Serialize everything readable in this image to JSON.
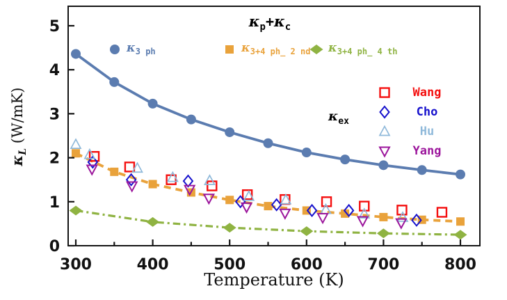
{
  "chart_data": {
    "type": "line+scatter",
    "title": {
      "kappa1": "κ",
      "sub1": "p",
      "plus": "+",
      "kappa2": "κ",
      "sub2": "c"
    },
    "xlabel": "Temperature (K)",
    "ylabel": {
      "symbol": "κ",
      "sub": "L",
      "units": " (W/mK)"
    },
    "axes": {
      "xlim": [
        290,
        825
      ],
      "ylim": [
        0,
        5.44
      ],
      "x_major_ticks": [
        300,
        400,
        500,
        600,
        700,
        800
      ],
      "x_minor_ticks": [
        350,
        450,
        550,
        650,
        750
      ],
      "y_ticks": [
        0,
        1,
        2,
        3,
        4,
        5
      ],
      "grid": "off",
      "frame": "full-box"
    },
    "model_series": [
      {
        "name": "kappa-3ph",
        "symbol": "κ",
        "sub": "3 ph",
        "marker": "circle",
        "line": "solid",
        "color": "#5b7cb0",
        "x": [
          300,
          350,
          400,
          450,
          500,
          550,
          600,
          650,
          700,
          750,
          800
        ],
        "y": [
          4.36,
          3.72,
          3.23,
          2.87,
          2.58,
          2.33,
          2.12,
          1.96,
          1.83,
          1.72,
          1.62
        ]
      },
      {
        "name": "kappa-3+4ph-2nd",
        "symbol": "κ",
        "sub": "3+4 ph_ 2 nd",
        "marker": "square",
        "line": "dashed",
        "color": "#e9a23b",
        "x": [
          300,
          350,
          400,
          450,
          500,
          550,
          600,
          650,
          700,
          750,
          800
        ],
        "y": [
          2.1,
          1.68,
          1.4,
          1.21,
          1.04,
          0.9,
          0.8,
          0.73,
          0.65,
          0.59,
          0.55
        ]
      },
      {
        "name": "kappa-3+4ph-4th",
        "symbol": "κ",
        "sub": "3+4 ph_ 4 th",
        "marker": "diamond",
        "line": "dashdot",
        "color": "#8fb342",
        "x": [
          300,
          400,
          500,
          600,
          700,
          800
        ],
        "y": [
          0.8,
          0.54,
          0.41,
          0.33,
          0.28,
          0.25
        ]
      }
    ],
    "experimental_label": {
      "symbol": "κ",
      "sub": "ex"
    },
    "experimental_series": [
      {
        "name": "Wang",
        "marker": "square-open",
        "color": "#f40f0f",
        "points": [
          [
            324,
            2.03
          ],
          [
            370,
            1.79
          ],
          [
            424,
            1.5
          ],
          [
            477,
            1.36
          ],
          [
            523,
            1.16
          ],
          [
            572,
            1.05
          ],
          [
            626,
            1.0
          ],
          [
            675,
            0.9
          ],
          [
            724,
            0.81
          ],
          [
            776,
            0.76
          ]
        ]
      },
      {
        "name": "Cho",
        "marker": "diamond-open",
        "color": "#1712cd",
        "points": [
          [
            322,
            1.9
          ],
          [
            372,
            1.5
          ],
          [
            446,
            1.47
          ],
          [
            514,
            1.0
          ],
          [
            561,
            0.93
          ],
          [
            607,
            0.8
          ],
          [
            655,
            0.8
          ],
          [
            743,
            0.58
          ]
        ]
      },
      {
        "name": "Hu",
        "marker": "triangle-up-open",
        "color": "#8fb9da",
        "points": [
          [
            300,
            2.3
          ],
          [
            318,
            2.07
          ],
          [
            380,
            1.76
          ],
          [
            426,
            1.55
          ],
          [
            474,
            1.48
          ],
          [
            525,
            1.12
          ],
          [
            573,
            1.04
          ],
          [
            625,
            0.82
          ],
          [
            675,
            0.72
          ],
          [
            725,
            0.64
          ]
        ]
      },
      {
        "name": "Yang",
        "marker": "triangle-down-open",
        "color": "#9c169c",
        "points": [
          [
            321,
            1.74
          ],
          [
            373,
            1.36
          ],
          [
            448,
            1.28
          ],
          [
            473,
            1.08
          ],
          [
            522,
            0.88
          ],
          [
            572,
            0.74
          ],
          [
            621,
            0.64
          ],
          [
            673,
            0.57
          ],
          [
            723,
            0.52
          ]
        ]
      }
    ]
  }
}
